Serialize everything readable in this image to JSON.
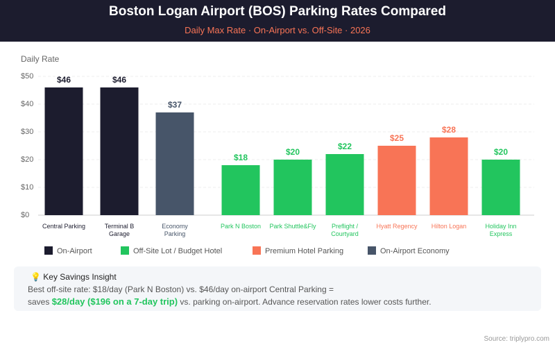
{
  "chart_data": {
    "type": "bar",
    "title": "Boston Logan Airport (BOS) Parking Rates Compared",
    "subtitle": "Daily Max Rate · On-Airport vs. Off-Site · 2026",
    "y_label": "Daily Rate",
    "categories": [
      "Central Parking",
      "Terminal B Garage",
      "Economy Parking",
      "Park N Boston",
      "Park Shuttle&Fly",
      "Preflight / Courtyard",
      "Hyatt Regency",
      "Hilton Logan",
      "Holiday Inn Express"
    ],
    "values": [
      46,
      46,
      37,
      18,
      20,
      22,
      25,
      28,
      20
    ],
    "value_labels": [
      "$46",
      "$46",
      "$37",
      "$18",
      "$20",
      "$22",
      "$25",
      "$28",
      "$20"
    ],
    "colors": [
      "#1c1c2e",
      "#1c1c2e",
      "#475569",
      "#22c55e",
      "#22c55e",
      "#22c55e",
      "#f87456",
      "#f87456",
      "#22c55e"
    ],
    "ylim": [
      0,
      50
    ],
    "yticks": [
      {
        "value": 0,
        "label": "$0"
      },
      {
        "value": 10,
        "label": "$10"
      },
      {
        "value": 20,
        "label": "$20"
      },
      {
        "value": 30,
        "label": "$30"
      },
      {
        "value": 40,
        "label": "$40"
      },
      {
        "value": 50,
        "label": "$50"
      }
    ],
    "grid": true,
    "legend": [
      {
        "name": "On-Airport",
        "color": "#1c1c2e"
      },
      {
        "name": "Off-Site Lot / Budget Hotel",
        "color": "#22c55e"
      },
      {
        "name": "Premium Hotel Parking",
        "color": "#f87456"
      },
      {
        "name": "On-Airport Economy",
        "color": "#475569"
      }
    ]
  },
  "insight": {
    "title": "Key Savings Insight",
    "line1": "Best off-site rate: $18/day (Park N Boston) vs. $46/day on-airport Central Parking =",
    "prefix": "saves",
    "highlight": "$28/day ($196 on a 7-day trip)",
    "suffix": "vs. parking on-airport. Advance reservation rates lower costs further."
  },
  "source": "Source: triplypro.com"
}
